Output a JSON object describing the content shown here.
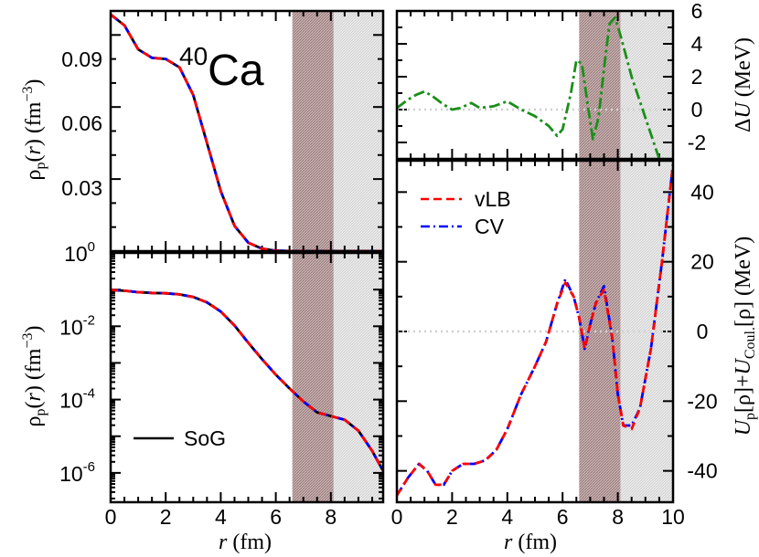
{
  "chart_data": [
    {
      "id": "top-left",
      "type": "line",
      "xlim": [
        0,
        9.9
      ],
      "ylim": [
        0,
        0.1
      ],
      "yticks": [
        0.03,
        0.06,
        0.09
      ],
      "ytick_labels": [
        "0.03",
        "0.06",
        "0.09"
      ],
      "ylabel": "ρp(r) (fm−3)",
      "annotation": "40Ca",
      "series": [
        {
          "name": "SoG",
          "x": [
            0,
            0.5,
            1,
            1.5,
            2,
            2.5,
            3,
            3.5,
            4,
            4.5,
            5,
            5.5,
            6,
            6.5,
            7,
            7.5,
            8,
            8.5,
            9,
            9.9
          ],
          "values": [
            0.0985,
            0.094,
            0.084,
            0.0805,
            0.08,
            0.0765,
            0.065,
            0.045,
            0.025,
            0.0105,
            0.0035,
            0.001,
            0.0002,
            3e-05,
            5e-06,
            2e-06,
            1e-06,
            5e-07,
            2e-07,
            1e-07
          ]
        },
        {
          "name": "vLB",
          "x": [
            0,
            0.5,
            1,
            1.5,
            2,
            2.5,
            3,
            3.5,
            4,
            4.5,
            5,
            5.5,
            6,
            6.5,
            7,
            7.5,
            8,
            8.5,
            9,
            9.9
          ],
          "values": [
            0.0985,
            0.094,
            0.084,
            0.0805,
            0.08,
            0.0765,
            0.065,
            0.045,
            0.025,
            0.0105,
            0.0035,
            0.001,
            0.0002,
            3e-05,
            5e-06,
            2e-06,
            1e-06,
            5e-07,
            2e-07,
            1e-07
          ]
        },
        {
          "name": "CV",
          "x": [
            0,
            0.5,
            1,
            1.5,
            2,
            2.5,
            3,
            3.5,
            4,
            4.5,
            5,
            5.5,
            6,
            6.5,
            7,
            7.5,
            8,
            8.5,
            9,
            9.9
          ],
          "values": [
            0.0985,
            0.094,
            0.084,
            0.0805,
            0.08,
            0.0765,
            0.065,
            0.045,
            0.025,
            0.0105,
            0.0035,
            0.001,
            0.0002,
            3e-05,
            5e-06,
            2e-06,
            1e-06,
            5e-07,
            2e-07,
            1e-07
          ]
        }
      ],
      "shaded_regions": [
        [
          6.6,
          8.1
        ],
        [
          8.1,
          9.9
        ]
      ]
    },
    {
      "id": "bottom-left",
      "type": "line",
      "xlim": [
        0,
        9.9
      ],
      "ylim_log10": [
        -6.8,
        0
      ],
      "yscale": "log",
      "xticks": [
        0,
        2,
        4,
        6,
        8
      ],
      "xlabel": "r (fm)",
      "ylabel": "ρp(r) (fm−3)",
      "ytick_labels": [
        {
          "base": "10",
          "exp": "0",
          "exp10": 0
        },
        {
          "base": "10",
          "exp": "-2",
          "exp10": -2
        },
        {
          "base": "10",
          "exp": "-4",
          "exp10": -4
        },
        {
          "base": "10",
          "exp": "-6",
          "exp10": -6
        }
      ],
      "legend": [
        {
          "name": "SoG",
          "color": "#000000",
          "style": "solid"
        }
      ],
      "series_log10": [
        {
          "name": "SoG",
          "x": [
            0,
            0.5,
            1,
            1.5,
            2,
            2.5,
            3,
            3.5,
            4,
            4.5,
            5,
            5.5,
            6,
            6.5,
            7,
            7.5,
            8,
            8.5,
            9,
            9.5,
            9.9
          ],
          "values": [
            -1.01,
            -1.03,
            -1.07,
            -1.09,
            -1.1,
            -1.13,
            -1.2,
            -1.35,
            -1.6,
            -1.98,
            -2.45,
            -2.9,
            -3.32,
            -3.7,
            -4.05,
            -4.35,
            -4.45,
            -4.55,
            -4.85,
            -5.4,
            -5.95
          ]
        }
      ],
      "shaded_regions": [
        [
          6.6,
          8.1
        ],
        [
          8.1,
          9.9
        ]
      ]
    },
    {
      "id": "top-right",
      "type": "line",
      "xlim": [
        0,
        10
      ],
      "ylim": [
        -3,
        6
      ],
      "yticks": [
        -2,
        0,
        2,
        4,
        6
      ],
      "ylabel": "ΔU (MeV)",
      "series": [
        {
          "name": "ΔU",
          "x": [
            0,
            0.4,
            0.7,
            1.0,
            1.3,
            1.7,
            2.0,
            2.3,
            2.7,
            3.0,
            3.5,
            4.0,
            4.5,
            5.0,
            5.5,
            5.8,
            6.0,
            6.3,
            6.5,
            6.7,
            6.9,
            7.1,
            7.3,
            7.5,
            7.7,
            7.9,
            8.1,
            8.5,
            9.0,
            9.5
          ],
          "values": [
            0.1,
            0.6,
            0.9,
            1.1,
            0.8,
            0.3,
            0.0,
            0.1,
            0.4,
            0.1,
            0.2,
            0.5,
            0.0,
            -0.4,
            -1.0,
            -1.6,
            -1.2,
            1.0,
            3.0,
            2.8,
            0.4,
            -1.8,
            -0.5,
            2.5,
            5.2,
            5.6,
            4.5,
            2.0,
            -0.5,
            -3.0
          ]
        }
      ],
      "reference_line": 0,
      "shaded_regions": [
        [
          6.6,
          8.1
        ],
        [
          8.1,
          10
        ]
      ]
    },
    {
      "id": "bottom-right",
      "type": "line",
      "xlim": [
        0,
        10
      ],
      "ylim": [
        -49,
        49
      ],
      "xticks": [
        0,
        2,
        4,
        6,
        8,
        10
      ],
      "yticks": [
        -40,
        -20,
        0,
        20,
        40
      ],
      "xlabel": "r (fm)",
      "ylabel": "Up[ρ]+UCoul.[ρ] (MeV)",
      "legend": [
        {
          "name": "vLB",
          "color": "#ff0000",
          "style": "dashed"
        },
        {
          "name": "CV",
          "color": "#0000ff",
          "style": "dashdot"
        }
      ],
      "series": [
        {
          "name": "vLB",
          "x": [
            0,
            0.4,
            0.8,
            1.1,
            1.4,
            1.7,
            2.0,
            2.4,
            2.8,
            3.2,
            3.6,
            4.0,
            4.5,
            5.0,
            5.4,
            5.8,
            6.1,
            6.4,
            6.6,
            6.8,
            7.0,
            7.2,
            7.5,
            7.8,
            8.0,
            8.2,
            8.5,
            8.8,
            9.2,
            9.6,
            10.0
          ],
          "values": [
            -47,
            -42,
            -38,
            -40,
            -44,
            -44,
            -40,
            -38,
            -38,
            -37,
            -34,
            -28,
            -18,
            -10,
            -3,
            8,
            14,
            10,
            4,
            -5,
            2,
            8,
            12,
            -2,
            -18,
            -27,
            -28,
            -22,
            -5,
            20,
            48
          ]
        },
        {
          "name": "CV",
          "x": [
            0,
            0.4,
            0.8,
            1.1,
            1.4,
            1.7,
            2.0,
            2.4,
            2.8,
            3.2,
            3.6,
            4.0,
            4.5,
            5.0,
            5.4,
            5.8,
            6.1,
            6.4,
            6.6,
            6.8,
            7.0,
            7.2,
            7.5,
            7.8,
            8.0,
            8.2,
            8.5,
            8.8,
            9.2,
            9.6,
            10.0
          ],
          "values": [
            -47,
            -42,
            -38,
            -40,
            -44,
            -44,
            -40,
            -38,
            -38,
            -37,
            -34,
            -28,
            -18,
            -10,
            -3,
            8,
            15,
            10,
            4,
            -5,
            2,
            8,
            13,
            -2,
            -18,
            -27,
            -27,
            -22,
            -5,
            20,
            48
          ]
        }
      ],
      "reference_line": 0,
      "shaded_regions": [
        [
          6.6,
          8.1
        ],
        [
          8.1,
          10
        ]
      ]
    }
  ],
  "colors": {
    "sog": "#000000",
    "vlb": "#ff0000",
    "cv": "#0000ff",
    "delta_u": "#1a8f1a",
    "shade_dark": "#b99a9a",
    "shade_light": "#dcdcdc",
    "reference": "#d0d0d0"
  }
}
